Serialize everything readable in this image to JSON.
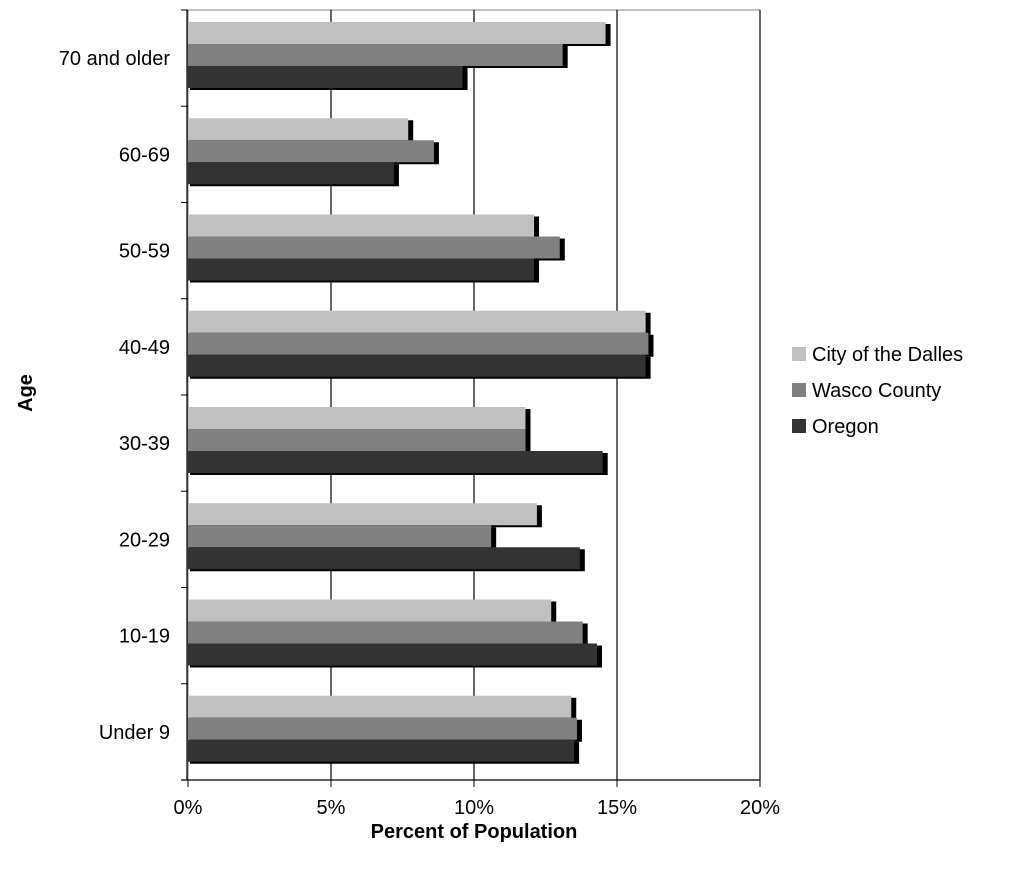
{
  "chart_data": {
    "type": "bar",
    "orientation": "horizontal",
    "categories": [
      "70 and older",
      "60-69",
      "50-59",
      "40-49",
      "30-39",
      "20-29",
      "10-19",
      "Under 9"
    ],
    "series": [
      {
        "name": "City of the Dalles",
        "color": "#c0c0c0",
        "values": [
          14.6,
          7.7,
          12.1,
          16.0,
          11.8,
          12.2,
          12.7,
          13.4
        ]
      },
      {
        "name": "Wasco County",
        "color": "#808080",
        "values": [
          13.1,
          8.6,
          13.0,
          16.1,
          11.8,
          10.6,
          13.8,
          13.6
        ]
      },
      {
        "name": "Oregon",
        "color": "#333333",
        "values": [
          9.6,
          7.2,
          12.1,
          16.0,
          14.5,
          13.7,
          14.3,
          13.5
        ]
      }
    ],
    "xlabel": "Percent of Population",
    "ylabel": "Age",
    "xlim": [
      0,
      20
    ],
    "xticks": [
      "0%",
      "5%",
      "10%",
      "15%",
      "20%"
    ],
    "grid": "vertical",
    "legend": "right"
  }
}
